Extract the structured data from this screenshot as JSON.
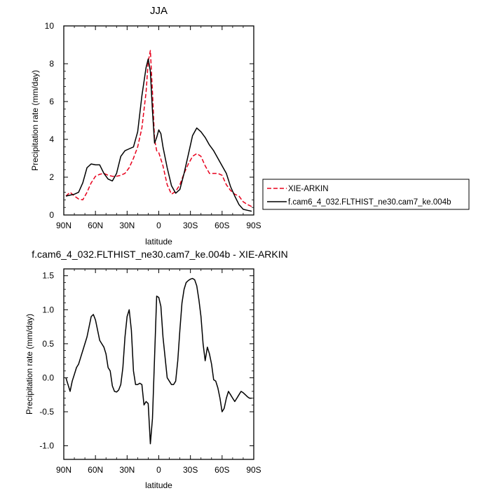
{
  "chart_data": [
    {
      "type": "line",
      "title": "JJA",
      "xlabel": "latitude",
      "ylabel": "Precipitation rate (mm/day)",
      "xlim": [
        90,
        -90
      ],
      "ylim": [
        0,
        10
      ],
      "xticks": [
        {
          "value": 90,
          "label": "90N"
        },
        {
          "value": 60,
          "label": "60N"
        },
        {
          "value": 30,
          "label": "30N"
        },
        {
          "value": 0,
          "label": "0"
        },
        {
          "value": -30,
          "label": "30S"
        },
        {
          "value": -60,
          "label": "60S"
        },
        {
          "value": -90,
          "label": "90S"
        }
      ],
      "yticks": [
        {
          "value": 0,
          "label": "0"
        },
        {
          "value": 2,
          "label": "2"
        },
        {
          "value": 4,
          "label": "4"
        },
        {
          "value": 6,
          "label": "6"
        },
        {
          "value": 8,
          "label": "8"
        },
        {
          "value": 10,
          "label": "10"
        }
      ],
      "legend_position": "right, outside plot",
      "series": [
        {
          "name": "XIE-ARKIN",
          "color": "#e8001c",
          "dash": "dashed",
          "x": [
            88,
            84,
            80,
            76,
            72,
            68,
            64,
            60,
            56,
            52,
            48,
            44,
            40,
            36,
            32,
            28,
            24,
            20,
            16,
            12,
            10,
            8,
            6,
            4,
            2,
            0,
            -4,
            -8,
            -12,
            -16,
            -20,
            -24,
            -28,
            -32,
            -36,
            -40,
            -44,
            -48,
            -52,
            -56,
            -60,
            -64,
            -68,
            -72,
            -76,
            -80,
            -84,
            -88
          ],
          "y": [
            1.0,
            1.2,
            1.0,
            0.85,
            0.8,
            1.2,
            1.7,
            2.05,
            2.15,
            2.2,
            2.1,
            2.05,
            2.05,
            2.1,
            2.2,
            2.5,
            3.0,
            3.6,
            4.6,
            6.5,
            8.1,
            8.7,
            6.5,
            4.0,
            3.4,
            3.3,
            2.6,
            1.6,
            1.1,
            1.25,
            1.6,
            2.2,
            2.7,
            3.1,
            3.25,
            3.1,
            2.6,
            2.2,
            2.2,
            2.2,
            2.1,
            1.6,
            1.3,
            1.1,
            1.0,
            0.7,
            0.55,
            0.45
          ]
        },
        {
          "name": "f.cam6_4_032.FLTHIST_ne30.cam7_ke.004b",
          "color": "#000000",
          "dash": "solid",
          "x": [
            88,
            84,
            80,
            76,
            72,
            68,
            64,
            60,
            56,
            52,
            48,
            44,
            40,
            36,
            32,
            28,
            24,
            20,
            16,
            12,
            10,
            8,
            6,
            4,
            2,
            0,
            -2,
            -4,
            -8,
            -12,
            -16,
            -20,
            -24,
            -28,
            -32,
            -36,
            -40,
            -44,
            -48,
            -52,
            -56,
            -60,
            -64,
            -68,
            -72,
            -76,
            -80,
            -84,
            -88
          ],
          "y": [
            1.0,
            1.05,
            1.1,
            1.2,
            1.7,
            2.5,
            2.7,
            2.65,
            2.65,
            2.2,
            1.9,
            1.8,
            2.2,
            3.1,
            3.4,
            3.5,
            3.6,
            4.4,
            6.3,
            7.8,
            8.25,
            7.6,
            5.5,
            3.8,
            4.1,
            4.5,
            4.3,
            3.6,
            2.5,
            1.55,
            1.15,
            1.35,
            2.2,
            3.2,
            4.2,
            4.6,
            4.4,
            4.1,
            3.7,
            3.4,
            3.0,
            2.6,
            2.2,
            1.5,
            1.0,
            0.55,
            0.3,
            0.25,
            0.2
          ]
        }
      ]
    },
    {
      "type": "line",
      "title": "f.cam6_4_032.FLTHIST_ne30.cam7_ke.004b - XIE-ARKIN",
      "xlabel": "latitude",
      "ylabel": "Precipitation rate (mm/day)",
      "xlim": [
        90,
        -90
      ],
      "ylim": [
        -1.2,
        1.6
      ],
      "xticks": [
        {
          "value": 90,
          "label": "90N"
        },
        {
          "value": 60,
          "label": "60N"
        },
        {
          "value": 30,
          "label": "30N"
        },
        {
          "value": 0,
          "label": "0"
        },
        {
          "value": -30,
          "label": "30S"
        },
        {
          "value": -60,
          "label": "60S"
        },
        {
          "value": -90,
          "label": "90S"
        }
      ],
      "yticks": [
        {
          "value": 1.5,
          "label": "1.5"
        },
        {
          "value": 1.0,
          "label": "1.0"
        },
        {
          "value": 0.5,
          "label": "0.5"
        },
        {
          "value": 0.0,
          "label": "0.0"
        },
        {
          "value": -0.5,
          "label": "-0.5"
        },
        {
          "value": -1.0,
          "label": "-1.0"
        }
      ],
      "series": [
        {
          "color": "#000000",
          "dash": "solid",
          "x": [
            88,
            86,
            84,
            82,
            80,
            78,
            76,
            74,
            72,
            70,
            68,
            66,
            64,
            62,
            60,
            58,
            56,
            54,
            52,
            50,
            48,
            46,
            44,
            42,
            40,
            38,
            36,
            34,
            32,
            30,
            28,
            26,
            24,
            22,
            20,
            18,
            16,
            14,
            12,
            10,
            8,
            6,
            4,
            2,
            0,
            -2,
            -4,
            -6,
            -8,
            -10,
            -12,
            -14,
            -16,
            -18,
            -20,
            -22,
            -24,
            -26,
            -28,
            -30,
            -32,
            -34,
            -36,
            -38,
            -40,
            -42,
            -44,
            -46,
            -48,
            -50,
            -52,
            -54,
            -56,
            -58,
            -60,
            -62,
            -64,
            -66,
            -68,
            -70,
            -72,
            -74,
            -76,
            -78,
            -80,
            -82,
            -84,
            -86,
            -88
          ],
          "y": [
            0.0,
            -0.1,
            -0.2,
            -0.05,
            0.05,
            0.15,
            0.2,
            0.3,
            0.4,
            0.5,
            0.6,
            0.75,
            0.9,
            0.93,
            0.85,
            0.7,
            0.55,
            0.5,
            0.45,
            0.35,
            0.15,
            0.1,
            -0.12,
            -0.2,
            -0.21,
            -0.18,
            -0.1,
            0.15,
            0.6,
            0.9,
            1.0,
            0.7,
            0.1,
            -0.1,
            -0.1,
            -0.08,
            -0.1,
            -0.4,
            -0.35,
            -0.38,
            -0.97,
            -0.6,
            0.3,
            1.2,
            1.18,
            1.05,
            0.6,
            0.3,
            0.0,
            -0.05,
            -0.1,
            -0.1,
            -0.05,
            0.25,
            0.7,
            1.1,
            1.3,
            1.4,
            1.43,
            1.45,
            1.46,
            1.44,
            1.35,
            1.15,
            0.9,
            0.5,
            0.25,
            0.45,
            0.35,
            0.2,
            -0.03,
            -0.05,
            -0.15,
            -0.3,
            -0.5,
            -0.45,
            -0.3,
            -0.2,
            -0.25,
            -0.3,
            -0.35,
            -0.3,
            -0.25,
            -0.2,
            -0.22,
            -0.25,
            -0.28,
            -0.3,
            -0.3
          ]
        }
      ]
    }
  ]
}
